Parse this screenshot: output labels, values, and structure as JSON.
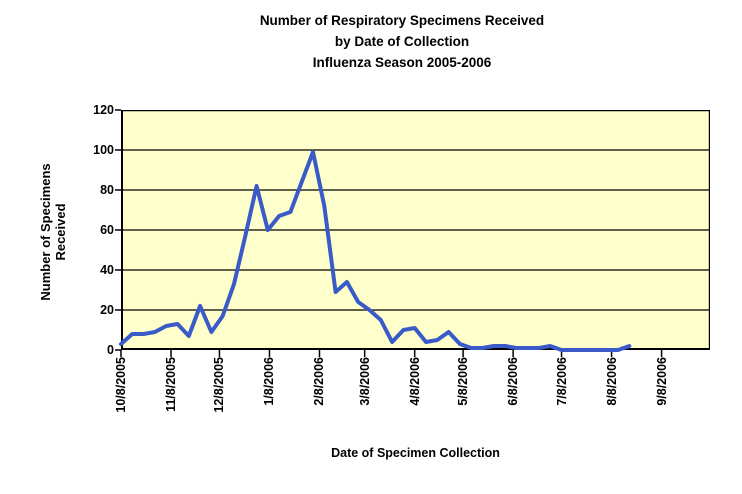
{
  "title": {
    "line1": "Number of Respiratory Specimens Received",
    "line2": "by Date of Collection",
    "line3": "Influenza Season 2005-2006"
  },
  "y_axis": {
    "title_line1": "Number of Specimens",
    "title_line2": "Received",
    "ticks": [
      0,
      20,
      40,
      60,
      80,
      100,
      120
    ],
    "min": 0,
    "max": 120
  },
  "x_axis": {
    "title": "Date of Specimen Collection",
    "tick_labels": [
      "10/8/2005",
      "11/8/2005",
      "12/8/2005",
      "1/8/2006",
      "2/8/2006",
      "3/8/2006",
      "4/8/2006",
      "5/8/2006",
      "6/8/2006",
      "7/8/2006",
      "8/8/2006",
      "9/8/2006"
    ],
    "tick_day_offsets": [
      0,
      31,
      61,
      92,
      123,
      151,
      182,
      212,
      243,
      273,
      304,
      335
    ],
    "total_days": 365
  },
  "chart_data": {
    "type": "line",
    "title": "Number of Respiratory Specimens Received by Date of Collection Influenza Season 2005-2006",
    "xlabel": "Date of Specimen Collection",
    "ylabel": "Number of Specimens Received",
    "ylim": [
      0,
      120
    ],
    "grid": "horizontal",
    "legend": "none",
    "x": [
      "10/8/2005",
      "10/15/2005",
      "10/22/2005",
      "10/29/2005",
      "11/5/2005",
      "11/12/2005",
      "11/19/2005",
      "11/26/2005",
      "12/3/2005",
      "12/10/2005",
      "12/17/2005",
      "12/24/2005",
      "12/31/2005",
      "1/7/2006",
      "1/14/2006",
      "1/21/2006",
      "1/28/2006",
      "2/4/2006",
      "2/11/2006",
      "2/18/2006",
      "2/25/2006",
      "3/4/2006",
      "3/11/2006",
      "3/18/2006",
      "3/25/2006",
      "4/1/2006",
      "4/8/2006",
      "4/15/2006",
      "4/22/2006",
      "4/29/2006",
      "5/6/2006",
      "5/13/2006",
      "5/20/2006",
      "5/27/2006",
      "6/3/2006",
      "6/10/2006",
      "6/17/2006",
      "6/24/2006",
      "7/1/2006",
      "7/8/2006",
      "7/15/2006",
      "7/22/2006",
      "7/29/2006",
      "8/5/2006",
      "8/12/2006",
      "8/19/2006"
    ],
    "day_offsets": [
      0,
      7,
      14,
      21,
      28,
      35,
      42,
      49,
      56,
      63,
      70,
      77,
      84,
      91,
      98,
      105,
      112,
      119,
      126,
      133,
      140,
      147,
      154,
      161,
      168,
      175,
      182,
      189,
      196,
      203,
      210,
      217,
      224,
      231,
      238,
      245,
      252,
      259,
      266,
      273,
      280,
      287,
      294,
      301,
      308,
      315
    ],
    "values": [
      3,
      8,
      8,
      9,
      12,
      13,
      7,
      22,
      9,
      17,
      33,
      57,
      82,
      60,
      67,
      69,
      84,
      99,
      72,
      29,
      34,
      24,
      20,
      15,
      4,
      10,
      11,
      4,
      5,
      9,
      3,
      1,
      1,
      2,
      2,
      1,
      1,
      1,
      2,
      0,
      0,
      0,
      0,
      0,
      0,
      2
    ]
  },
  "colors": {
    "series_line": "#3A5BC7",
    "plot_background": "#FFFFCC",
    "gridline": "#000000",
    "axis": "#000000",
    "text": "#000000",
    "page_background": "#FFFFFF"
  }
}
